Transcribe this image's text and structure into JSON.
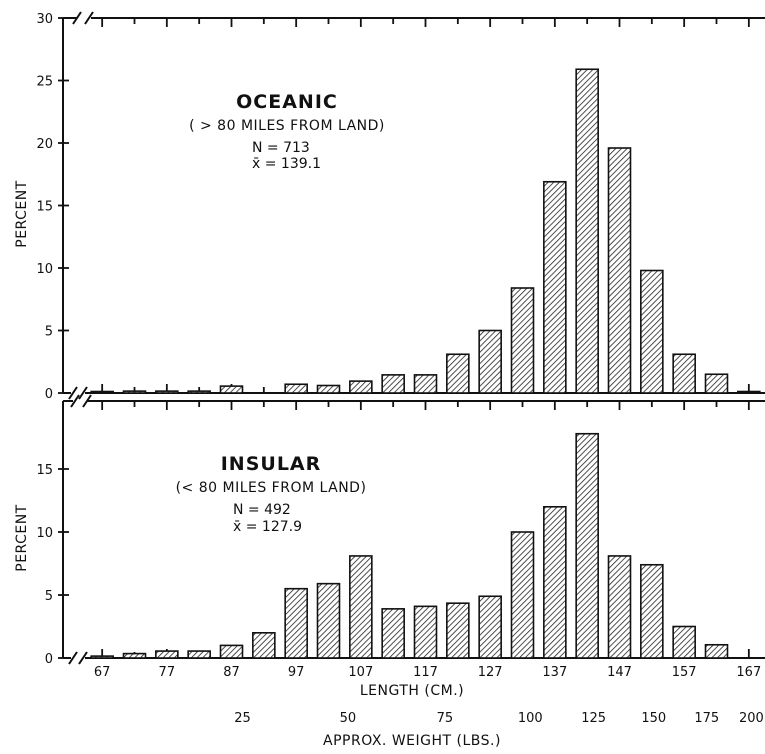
{
  "chart_data": [
    {
      "type": "bar",
      "panel": "top",
      "title": "OCEANIC",
      "subtitle": "( > 80 MILES FROM LAND)",
      "n_label": "N = 713",
      "mean_label": "x̄ = 139.1",
      "ylabel": "PERCENT",
      "ylim": [
        0,
        30
      ],
      "yticks": [
        0,
        5,
        10,
        15,
        20,
        25,
        30
      ],
      "x": [
        67,
        72,
        77,
        82,
        87,
        92,
        97,
        102,
        107,
        112,
        117,
        122,
        127,
        132,
        137,
        142,
        147,
        152,
        157,
        162,
        167
      ],
      "values": [
        0.05,
        0.15,
        0.15,
        0.15,
        0.55,
        0,
        0.7,
        0.6,
        0.95,
        1.45,
        1.45,
        3.1,
        5.0,
        8.4,
        16.9,
        25.9,
        19.6,
        9.8,
        3.1,
        1.5,
        0.1
      ]
    },
    {
      "type": "bar",
      "panel": "bottom",
      "title": "INSULAR",
      "subtitle": "(< 80 MILES FROM LAND)",
      "n_label": "N = 492",
      "mean_label": "x̄ = 127.9",
      "ylabel": "PERCENT",
      "ylim": [
        0,
        19
      ],
      "yticks": [
        0,
        5,
        10,
        15
      ],
      "x": [
        67,
        72,
        77,
        82,
        87,
        92,
        97,
        102,
        107,
        112,
        117,
        122,
        127,
        132,
        137,
        142,
        147,
        152,
        157,
        162
      ],
      "values": [
        0.15,
        0.35,
        0.55,
        0.55,
        1.0,
        2.0,
        5.5,
        5.9,
        8.1,
        3.9,
        4.1,
        4.35,
        4.9,
        10.0,
        12.0,
        17.8,
        8.1,
        7.4,
        2.5,
        1.05
      ]
    }
  ],
  "x_axis": {
    "title": "LENGTH (CM.)",
    "ticks": [
      67,
      77,
      87,
      97,
      107,
      117,
      127,
      137,
      147,
      157,
      167
    ],
    "range": [
      64.5,
      169.5
    ]
  },
  "weight_axis": {
    "title": "APPROX. WEIGHT (LBS.)",
    "labels": [
      {
        "text": "25",
        "length": 88.7
      },
      {
        "text": "50",
        "length": 105
      },
      {
        "text": "75",
        "length": 120
      },
      {
        "text": "100",
        "length": 133.2
      },
      {
        "text": "125",
        "length": 143
      },
      {
        "text": "150",
        "length": 152.3
      },
      {
        "text": "175",
        "length": 160.5
      },
      {
        "text": "200",
        "length": 167.4
      }
    ]
  }
}
